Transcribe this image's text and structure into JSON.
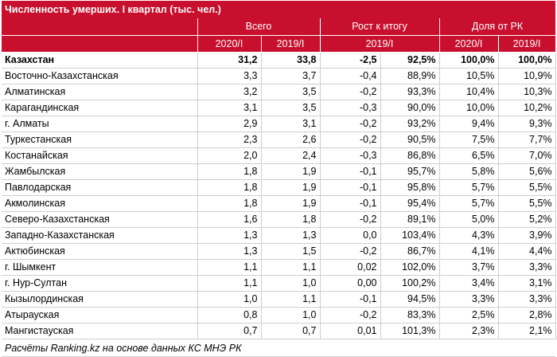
{
  "title": "Численность умерших. I квартал (тыс. чел.)",
  "groups": {
    "total": "Всего",
    "growth": "Рост к итогу",
    "share": "Доля от РК"
  },
  "subheaders": {
    "total_2020": "2020/I",
    "total_2019": "2019/I",
    "growth_period": "2019/I",
    "share_2020": "2020/I",
    "share_2019": "2019/I"
  },
  "rows": [
    {
      "region": "Казахстан",
      "v2020": "31,2",
      "v2019": "33,8",
      "diff": "-2,5",
      "pct": "92,5%",
      "s2020": "100,0%",
      "s2019": "100,0%"
    },
    {
      "region": "Восточно-Казахстанская",
      "v2020": "3,3",
      "v2019": "3,7",
      "diff": "-0,4",
      "pct": "88,9%",
      "s2020": "10,5%",
      "s2019": "10,9%"
    },
    {
      "region": "Алматинская",
      "v2020": "3,2",
      "v2019": "3,5",
      "diff": "-0,2",
      "pct": "93,3%",
      "s2020": "10,4%",
      "s2019": "10,3%"
    },
    {
      "region": "Карагандинская",
      "v2020": "3,1",
      "v2019": "3,5",
      "diff": "-0,3",
      "pct": "90,0%",
      "s2020": "10,0%",
      "s2019": "10,2%"
    },
    {
      "region": "г. Алматы",
      "v2020": "2,9",
      "v2019": "3,1",
      "diff": "-0,2",
      "pct": "93,2%",
      "s2020": "9,4%",
      "s2019": "9,3%"
    },
    {
      "region": "Туркестанская",
      "v2020": "2,3",
      "v2019": "2,6",
      "diff": "-0,2",
      "pct": "90,5%",
      "s2020": "7,5%",
      "s2019": "7,7%"
    },
    {
      "region": "Костанайская",
      "v2020": "2,0",
      "v2019": "2,4",
      "diff": "-0,3",
      "pct": "86,8%",
      "s2020": "6,5%",
      "s2019": "7,0%"
    },
    {
      "region": "Жамбылская",
      "v2020": "1,8",
      "v2019": "1,9",
      "diff": "-0,1",
      "pct": "95,7%",
      "s2020": "5,8%",
      "s2019": "5,6%"
    },
    {
      "region": "Павлодарская",
      "v2020": "1,8",
      "v2019": "1,9",
      "diff": "-0,1",
      "pct": "95,8%",
      "s2020": "5,7%",
      "s2019": "5,5%"
    },
    {
      "region": "Акмолинская",
      "v2020": "1,8",
      "v2019": "1,9",
      "diff": "-0,1",
      "pct": "95,4%",
      "s2020": "5,7%",
      "s2019": "5,5%"
    },
    {
      "region": "Северо-Казахстанская",
      "v2020": "1,6",
      "v2019": "1,8",
      "diff": "-0,2",
      "pct": "89,1%",
      "s2020": "5,0%",
      "s2019": "5,2%"
    },
    {
      "region": "Западно-Казахстанская",
      "v2020": "1,3",
      "v2019": "1,3",
      "diff": "0,0",
      "pct": "103,4%",
      "s2020": "4,3%",
      "s2019": "3,9%"
    },
    {
      "region": "Актюбинская",
      "v2020": "1,3",
      "v2019": "1,5",
      "diff": "-0,2",
      "pct": "86,7%",
      "s2020": "4,1%",
      "s2019": "4,4%"
    },
    {
      "region": "г. Шымкент",
      "v2020": "1,1",
      "v2019": "1,1",
      "diff": "0,02",
      "pct": "102,0%",
      "s2020": "3,7%",
      "s2019": "3,3%"
    },
    {
      "region": "г. Нур-Султан",
      "v2020": "1,1",
      "v2019": "1,0",
      "diff": "0,00",
      "pct": "100,2%",
      "s2020": "3,4%",
      "s2019": "3,1%"
    },
    {
      "region": "Кызылординская",
      "v2020": "1,0",
      "v2019": "1,1",
      "diff": "-0,1",
      "pct": "94,5%",
      "s2020": "3,3%",
      "s2019": "3,3%"
    },
    {
      "region": "Атырауская",
      "v2020": "0,8",
      "v2019": "1,0",
      "diff": "-0,2",
      "pct": "83,3%",
      "s2020": "2,5%",
      "s2019": "2,8%"
    },
    {
      "region": "Мангистауская",
      "v2020": "0,7",
      "v2019": "0,7",
      "diff": "0,01",
      "pct": "101,3%",
      "s2020": "2,3%",
      "s2019": "2,1%"
    }
  ],
  "footer": "Расчёты Ranking.kz на основе данных КС МНЭ РК",
  "colors": {
    "header_bg": "#c8102e",
    "header_text": "#ffffff",
    "grid": "#cfcfcf"
  }
}
